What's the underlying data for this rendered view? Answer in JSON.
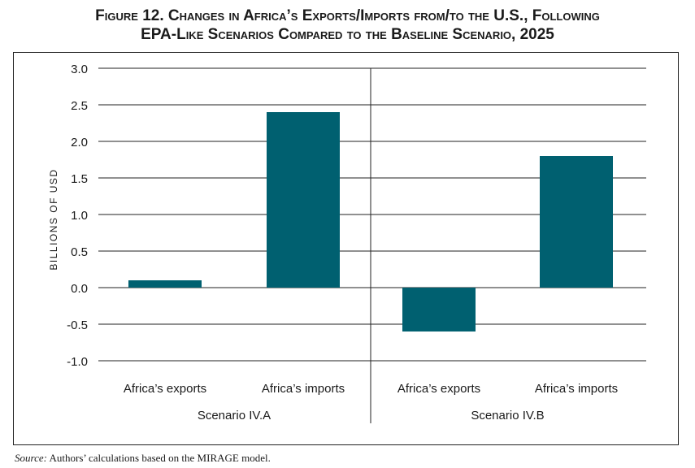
{
  "title_line1": "Figure 12. Changes in Africa’s Exports/Imports from/to the U.S., Following",
  "title_line2": "EPA-Like Scenarios Compared to the Baseline Scenario, 2025",
  "source_label": "Source:",
  "source_text": " Authors’ calculations based on the MIRAGE model.",
  "chart_data": {
    "type": "bar",
    "ylabel": "BILLIONS OF USD",
    "ylim": [
      -1.0,
      3.0
    ],
    "yticks": [
      "3.0",
      "2.5",
      "2.0",
      "1.5",
      "1.0",
      "0.5",
      "0.0",
      "-0.5",
      "-1.0"
    ],
    "ytick_values": [
      3.0,
      2.5,
      2.0,
      1.5,
      1.0,
      0.5,
      0.0,
      -0.5,
      -1.0
    ],
    "grid": true,
    "bar_color": "#006070",
    "groups": [
      {
        "name": "Scenario IV.A",
        "categories": [
          "Africa’s exports",
          "Africa’s imports"
        ],
        "values": [
          0.1,
          2.4
        ]
      },
      {
        "name": "Scenario IV.B",
        "categories": [
          "Africa’s exports",
          "Africa’s imports"
        ],
        "values": [
          -0.6,
          1.8
        ]
      }
    ]
  }
}
